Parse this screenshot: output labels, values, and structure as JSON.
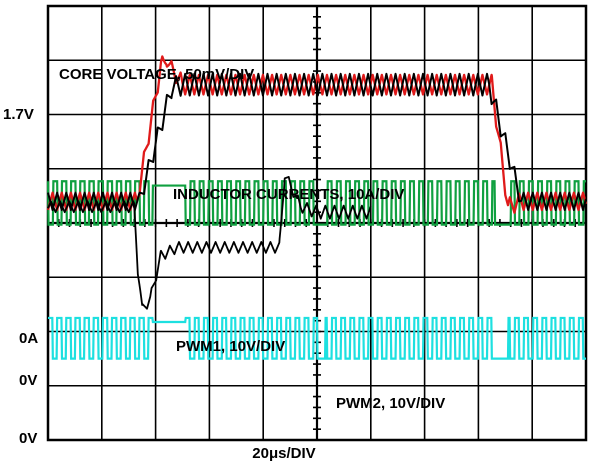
{
  "chart_data": {
    "type": "line",
    "title": "",
    "xlabel": "20μs/DIV",
    "divisions": {
      "x": 10,
      "y": 8
    },
    "grid": true,
    "annotations": {
      "core_voltage": "CORE VOLTAGE, 50mV/DIV",
      "inductor_currents": "INDUCTOR CURRENTS, 10A/DIV",
      "pwm1": "PWM1, 10V/DIV",
      "pwm2": "PWM2, 10V/DIV"
    },
    "ref_labels": {
      "v17": "1.7V",
      "zeroA": "0A",
      "zeroV1": "0V",
      "zeroV2": "0V"
    },
    "colors": {
      "grid": "#000000",
      "core_voltage": "#000000",
      "inductor_1": "#e01a1a",
      "inductor_2": "#000000",
      "pwm1": "#1de0e0",
      "pwm2": "#10a040"
    },
    "series": [
      {
        "key": "core_voltage",
        "x_div": [
          0.0,
          1.6,
          1.67,
          1.75,
          1.9,
          2.1,
          2.4,
          4.3,
          4.32,
          4.4,
          4.5,
          4.7,
          5.0,
          5.2,
          5.3,
          6.0
        ],
        "y_div": [
          0.3,
          0.3,
          -0.8,
          -1.6,
          -1.4,
          -0.6,
          -0.45,
          -0.45,
          -0.2,
          0.9,
          0.7,
          0.3,
          0.2,
          0.2,
          0.2,
          0.2
        ],
        "ripple_div": [
          0.1,
          0.1,
          0.15,
          0.1,
          0.1,
          0.1,
          0.1,
          0.1,
          0.1,
          0.1,
          0.1,
          0.1,
          0.12,
          0.12,
          0.12,
          0.12
        ]
      },
      {
        "key": "inductor_1",
        "x_div": [
          0.0,
          1.65,
          2.1,
          2.2,
          2.5,
          8.25,
          8.55,
          8.8,
          10.0
        ],
        "y_div": [
          0.4,
          0.4,
          2.9,
          3.0,
          2.55,
          2.55,
          0.3,
          0.4,
          0.4
        ],
        "ripple_div": [
          0.16,
          0.16,
          0.16,
          0.1,
          0.18,
          0.18,
          0.16,
          0.16,
          0.16
        ]
      },
      {
        "key": "inductor_2",
        "x_div": [
          0.0,
          1.7,
          2.3,
          2.5,
          8.2,
          8.8,
          10.0
        ],
        "y_div": [
          0.4,
          0.4,
          2.5,
          2.55,
          2.55,
          0.4,
          0.4
        ],
        "ripple_div": [
          0.16,
          0.16,
          0.18,
          0.2,
          0.2,
          0.16,
          0.16
        ]
      },
      {
        "key": "pwm1",
        "base_div": 2.5,
        "amplitude_div": 0.75,
        "period_div": 0.17,
        "flat_high_div": [
          [
            1.95,
            2.55
          ]
        ],
        "flat_low_div": [
          [
            5.0,
            5.15
          ],
          [
            8.25,
            8.55
          ]
        ]
      },
      {
        "key": "pwm2",
        "base_div": 0.03,
        "amplitude_div": 0.8,
        "period_div": 0.17,
        "flat_high_div": [
          [
            1.95,
            2.55
          ]
        ],
        "flat_low_div": [
          [
            5.0,
            5.15
          ],
          [
            8.3,
            8.6
          ]
        ]
      }
    ]
  }
}
